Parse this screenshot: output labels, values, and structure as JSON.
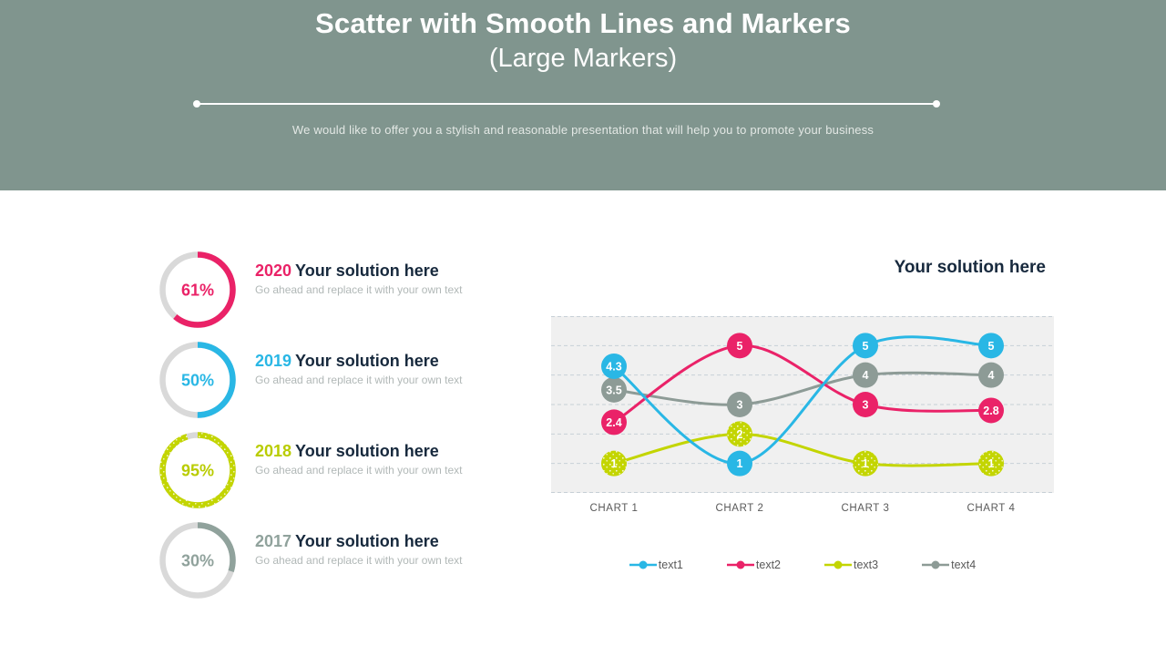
{
  "header": {
    "title_line1": "Scatter with Smooth Lines and Markers",
    "title_line2": "(Large Markers)",
    "subtitle": "We would like to offer you a stylish and reasonable presentation that will help you to promote your business",
    "bg_color": "#80958e"
  },
  "items": [
    {
      "year": "2020",
      "title": "Your solution here",
      "subtitle": "Go ahead and replace it with your own text",
      "percent": 61,
      "percent_label": "61%",
      "color": "#ea2267",
      "speckled": false
    },
    {
      "year": "2019",
      "title": "Your solution here",
      "subtitle": "Go ahead and replace it with your own text",
      "percent": 50,
      "percent_label": "50%",
      "color": "#29b7e5",
      "speckled": false
    },
    {
      "year": "2018",
      "title": "Your solution here",
      "subtitle": "Go ahead and replace it with your own text",
      "percent": 95,
      "percent_label": "95%",
      "color": "#b9cc00",
      "speckled": true
    },
    {
      "year": "2017",
      "title": "Your solution here",
      "subtitle": "Go ahead and replace it with your own text",
      "percent": 30,
      "percent_label": "30%",
      "color": "#90a29c",
      "speckled": false
    }
  ],
  "ring": {
    "track_color": "#d9d9d9"
  },
  "chart_data": {
    "type": "line",
    "line_style": "smooth",
    "marker_style": "large-circle",
    "title": "Your solution here",
    "xlabel": "",
    "ylabel": "",
    "categories": [
      "CHART 1",
      "CHART 2",
      "CHART 3",
      "CHART 4"
    ],
    "series": [
      {
        "name": "text1",
        "color": "#29b7e5",
        "values": [
          4.3,
          1,
          5,
          5
        ],
        "labels": [
          "4.3",
          "1",
          "5",
          "5"
        ],
        "speckled": false
      },
      {
        "name": "text2",
        "color": "#ea2268",
        "values": [
          2.4,
          5,
          3,
          2.8
        ],
        "labels": [
          "2.4",
          "5",
          "3",
          "2.8"
        ],
        "speckled": false
      },
      {
        "name": "text3",
        "color": "#c3d500",
        "values": [
          1,
          2,
          1,
          1
        ],
        "labels": [
          "1",
          "2",
          "1",
          "1"
        ],
        "speckled": true
      },
      {
        "name": "text4",
        "color": "#8d9b96",
        "values": [
          3.5,
          3,
          4,
          4
        ],
        "labels": [
          "3.5",
          "3",
          "4",
          "4"
        ],
        "speckled": false
      }
    ],
    "ylim": [
      0,
      6
    ],
    "grid": "horizontal-dashed",
    "gridline_color": "#c6cfd6",
    "plot_bg_color": "#f0f0f0",
    "legend_position": "bottom",
    "label_color": "#595959",
    "data_label_color": "#ffffff"
  }
}
